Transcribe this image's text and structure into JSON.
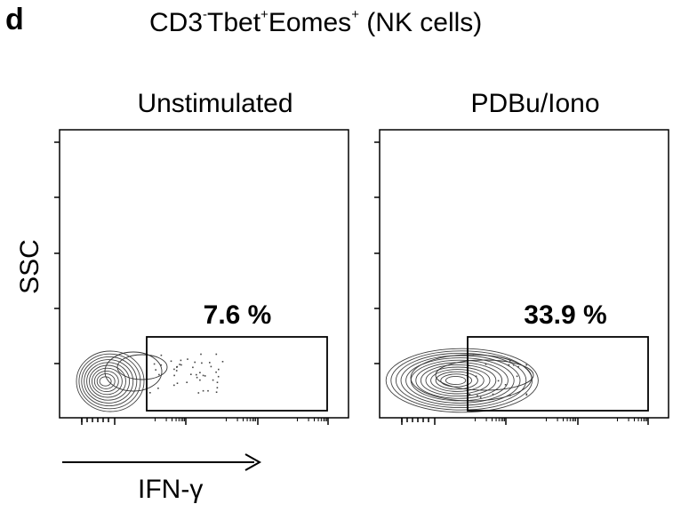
{
  "panel_letter": "d",
  "figure_title": {
    "parts": [
      {
        "text": "CD3",
        "sup": "-"
      },
      {
        "text": "Tbet",
        "sup": "+"
      },
      {
        "text": "Eomes",
        "sup": "+"
      },
      {
        "text": " (NK cells)",
        "sup": ""
      }
    ]
  },
  "y_axis_label": "SSC",
  "x_axis_label": "IFN-γ",
  "chart_data": [
    {
      "type": "scatter",
      "subtype": "flow-cytometry-contour",
      "title": "Unstimulated",
      "xlabel": "IFN-γ",
      "ylabel": "SSC",
      "gate_label": "7.6 %",
      "gate_percent": 7.6,
      "x_scale": "log",
      "grid": false
    },
    {
      "type": "scatter",
      "subtype": "flow-cytometry-contour",
      "title": "PDBu/Iono",
      "xlabel": "IFN-γ",
      "ylabel": "SSC",
      "gate_label": "33.9 %",
      "gate_percent": 33.9,
      "x_scale": "log",
      "grid": false
    }
  ]
}
